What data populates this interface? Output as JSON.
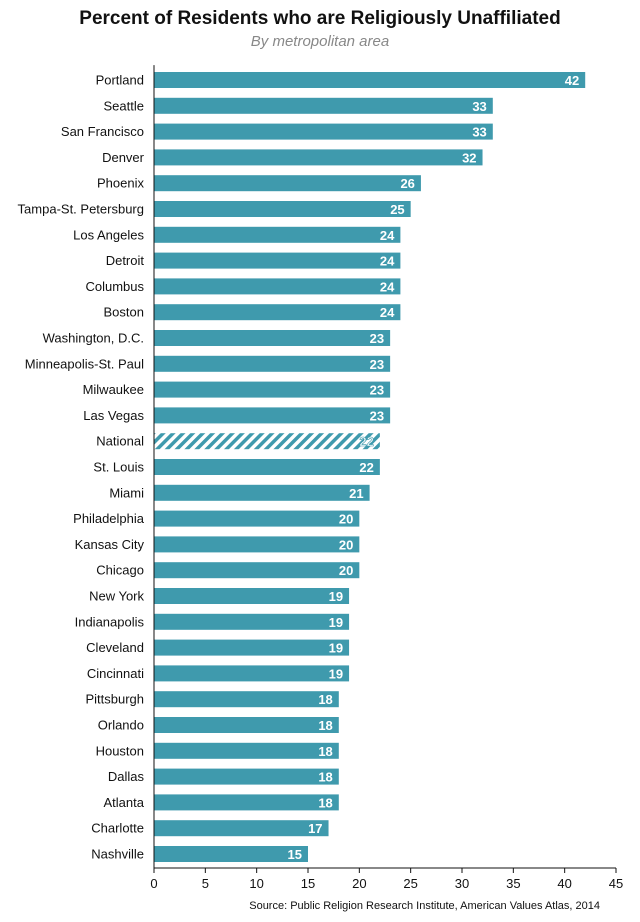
{
  "chart_data": {
    "type": "bar",
    "orientation": "horizontal",
    "title": "Percent of Residents who are Religiously Unaffiliated",
    "subtitle": "By metropolitan area",
    "xlabel": "",
    "ylabel": "",
    "xlim": [
      0,
      45
    ],
    "xticks": [
      0,
      5,
      10,
      15,
      20,
      25,
      30,
      35,
      40,
      45
    ],
    "grid": false,
    "bar_color": "#3f9aad",
    "highlight_category": "National",
    "highlight_style": "hatched",
    "categories": [
      "Portland",
      "Seattle",
      "San Francisco",
      "Denver",
      "Phoenix",
      "Tampa-St. Petersburg",
      "Los Angeles",
      "Detroit",
      "Columbus",
      "Boston",
      "Washington, D.C.",
      "Minneapolis-St. Paul",
      "Milwaukee",
      "Las Vegas",
      "National",
      "St. Louis",
      "Miami",
      "Philadelphia",
      "Kansas City",
      "Chicago",
      "New York",
      "Indianapolis",
      "Cleveland",
      "Cincinnati",
      "Pittsburgh",
      "Orlando",
      "Houston",
      "Dallas",
      "Atlanta",
      "Charlotte",
      "Nashville"
    ],
    "values": [
      42,
      33,
      33,
      32,
      26,
      25,
      24,
      24,
      24,
      24,
      23,
      23,
      23,
      23,
      22,
      22,
      21,
      20,
      20,
      20,
      19,
      19,
      19,
      19,
      18,
      18,
      18,
      18,
      18,
      17,
      15
    ]
  },
  "source": "Source: Public Religion Research Institute, American Values Atlas, 2014"
}
